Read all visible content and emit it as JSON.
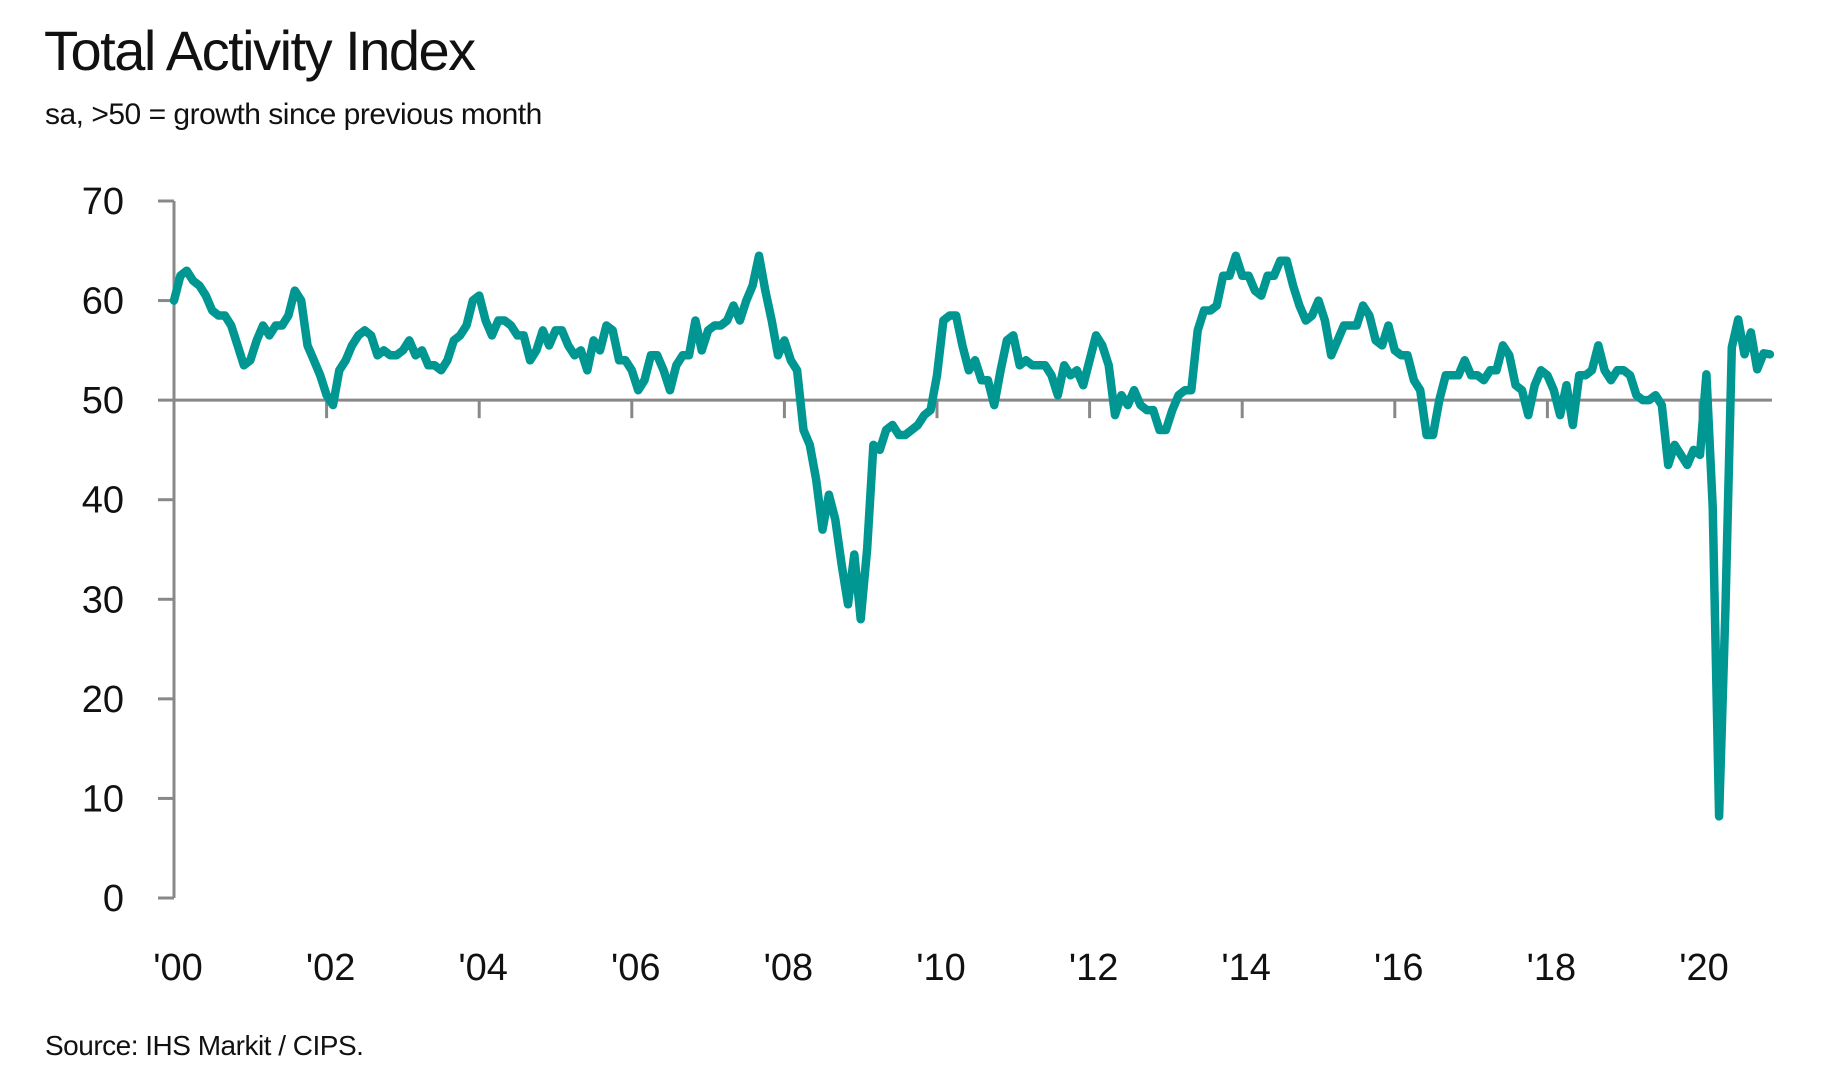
{
  "chart_data": {
    "type": "line",
    "title": "Total Activity Index",
    "subtitle": "sa, >50 = growth since previous month",
    "source": "Source: IHS Markit / CIPS.",
    "xlabel": "",
    "ylabel": "",
    "ylim": [
      0,
      70
    ],
    "yticks": [
      "0",
      "10",
      "20",
      "30",
      "40",
      "50",
      "60",
      "70"
    ],
    "xticks": [
      "'00",
      "'02",
      "'04",
      "'06",
      "'08",
      "'10",
      "'12",
      "'14",
      "'16",
      "'18",
      "'20"
    ],
    "xrange": [
      "2000-01",
      "2020-12"
    ],
    "frequency": "monthly",
    "reference_line": 50,
    "grid": false,
    "line_color": "#009793",
    "axis_color": "#888888",
    "series": [
      {
        "start": "2000-01",
        "values": [
          60,
          62.5,
          63,
          62,
          61.5,
          60.5,
          59,
          58.5,
          58.5,
          57.5,
          55.5,
          53.5,
          54,
          56,
          57.5,
          56.5,
          57.5,
          57.5,
          58.5,
          61,
          60,
          55.5,
          54,
          52.5,
          50.5,
          49.5,
          53,
          54,
          55.5,
          56.5,
          57,
          56.5,
          54.5,
          55,
          54.5,
          54.5,
          55,
          56,
          54.5,
          55,
          53.5,
          53.5,
          53,
          54,
          56,
          56.5,
          57.5,
          60,
          60.5,
          58,
          56.5,
          58,
          58,
          57.5,
          56.5,
          56.5,
          54,
          55,
          57,
          55.5,
          57,
          57,
          55.5,
          54.5,
          55,
          53,
          56,
          55,
          57.5,
          57,
          54,
          54,
          53,
          51,
          52,
          54.5,
          54.5,
          53,
          51,
          53.5,
          54.5,
          54.5,
          58,
          55,
          57,
          57.5,
          57.5,
          58,
          59.5,
          58,
          60,
          61.5,
          64.5,
          61,
          58,
          54.5,
          56,
          54,
          53,
          47,
          45.5,
          42,
          37,
          40.5,
          38,
          33.5,
          29.5,
          34.5,
          28,
          35,
          45.5,
          45,
          47,
          47.5,
          46.5,
          46.5,
          47,
          47.5,
          48.5,
          49,
          52.5,
          58,
          58.5,
          58.5,
          55.5,
          53,
          54,
          52,
          52,
          49.5,
          53,
          56,
          56.5,
          53.5,
          54,
          53.5,
          53.5,
          53.5,
          52.5,
          50.5,
          53.5,
          52.5,
          53,
          51.5,
          54,
          56.5,
          55.5,
          53.5,
          48.5,
          50.5,
          49.5,
          51,
          49.5,
          49,
          49,
          47,
          47,
          49,
          50.5,
          51,
          51,
          57,
          59,
          59,
          59.5,
          62.5,
          62.5,
          64.5,
          62.5,
          62.5,
          61,
          60.5,
          62.5,
          62.5,
          64,
          64,
          61.5,
          59.5,
          58,
          58.5,
          60,
          58,
          54.5,
          56,
          57.5,
          57.5,
          57.5,
          59.5,
          58.5,
          56,
          55.5,
          57.5,
          55,
          54.5,
          54.5,
          52,
          51,
          46.5,
          46.5,
          50,
          52.5,
          52.5,
          52.5,
          54,
          52.5,
          52.5,
          52,
          53,
          53,
          55.5,
          54.5,
          51.5,
          51,
          48.5,
          51.5,
          53,
          52.5,
          51,
          48.5,
          51.5,
          47.5,
          52.5,
          52.5,
          53,
          55.5,
          53,
          52,
          53,
          53,
          52.5,
          50.5,
          50,
          50,
          50.5,
          49.5,
          43.5,
          45.5,
          44.5,
          43.5,
          45,
          44.5,
          52.6,
          39.3,
          8.2,
          28.9,
          55.3,
          58.1,
          54.6,
          56.8,
          53.1,
          54.7,
          54.6
        ]
      }
    ]
  }
}
